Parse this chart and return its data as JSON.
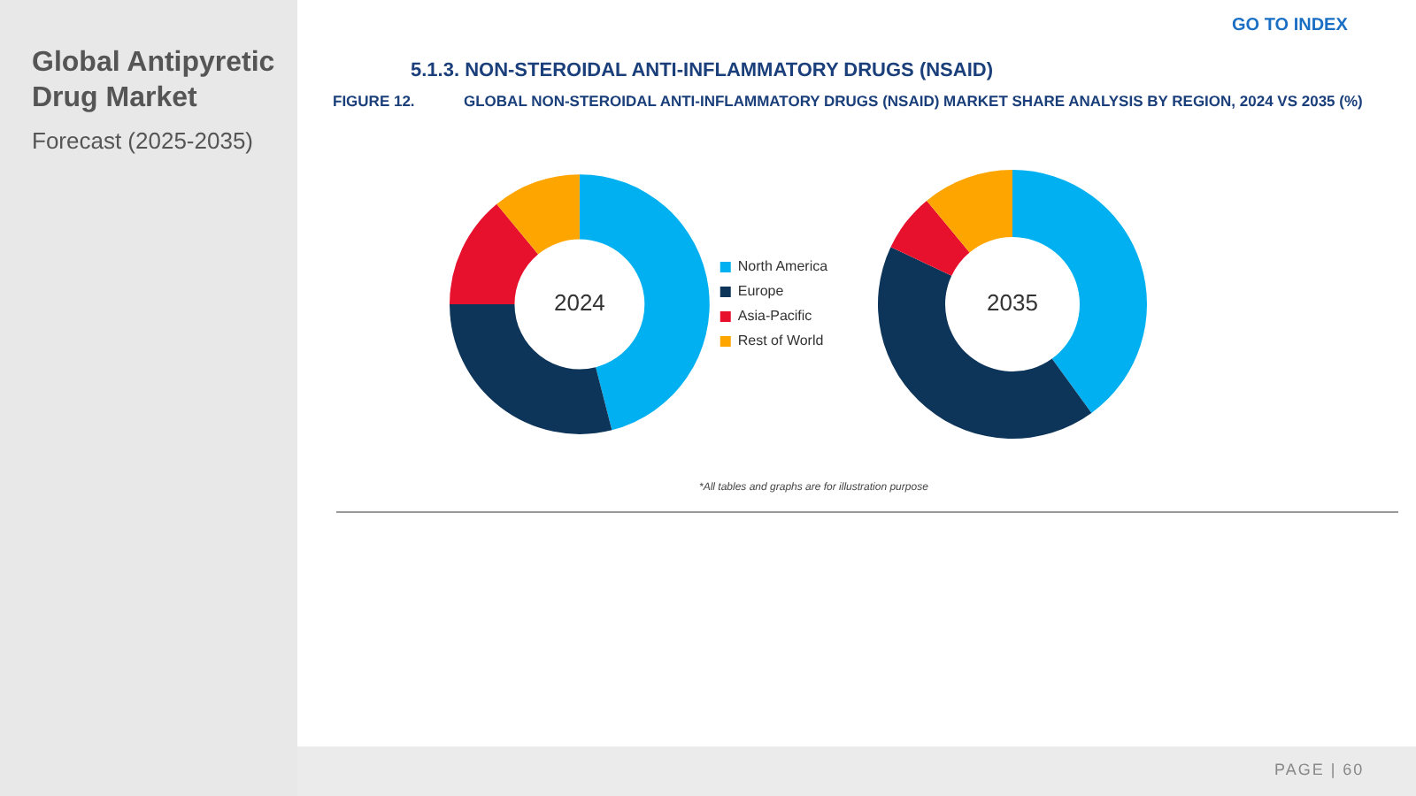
{
  "chart_data": [
    {
      "type": "other",
      "title": "GLOBAL NON-STEROIDAL ANTI-INFLAMMATORY DRUGS (NSAID) MARKET SHARE ANALYSIS BY REGION, 2024 VS 2035 (%)",
      "subtitle": "5.1.3. NON-STEROIDAL ANTI-INFLAMMATORY DRUGS (NSAID)",
      "annotations": [
        "Global Antipyretic Drug Market",
        "Forecast (2025-2035)",
        "GO TO INDEX",
        "FIGURE 12.",
        "*All tables and graphs are for illustration purpose",
        "PAGE | 60"
      ]
    },
    {
      "type": "donut",
      "title": "2024",
      "categories": [
        "North America",
        "Europe",
        "Asia-Pacific",
        "Rest of World"
      ],
      "values": [
        46,
        29,
        14,
        11
      ],
      "colors": [
        "#00b0f0",
        "#0d3559",
        "#e8112d",
        "#ffa500"
      ],
      "legend": "right"
    },
    {
      "type": "donut",
      "title": "2035",
      "categories": [
        null,
        null,
        null,
        null
      ],
      "values": [
        40,
        42,
        7,
        11
      ],
      "colors": [
        "#00b0f0",
        "#0d3559",
        "#e8112d",
        "#ffa500"
      ]
    }
  ]
}
